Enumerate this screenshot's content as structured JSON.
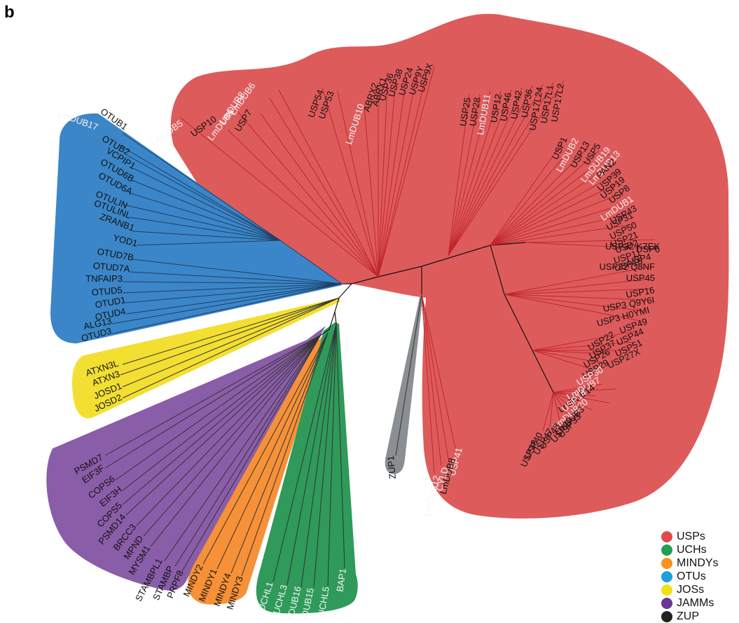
{
  "panel_label": "b",
  "colors": {
    "USPs": "#de5b5c",
    "UCHs": "#2f9a5a",
    "MINDYs": "#f69138",
    "OTUs": "#3b86c8",
    "JOSs": "#f3df32",
    "JAMMs": "#8a5da8",
    "ZUP": "#8b8f91"
  },
  "legend": [
    {
      "label": "USPs",
      "color": "#e04a4a"
    },
    {
      "label": "UCHs",
      "color": "#22a050"
    },
    {
      "label": "MINDYs",
      "color": "#f7931e"
    },
    {
      "label": "OTUs",
      "color": "#1ea0d8"
    },
    {
      "label": "JOSs",
      "color": "#f0e018"
    },
    {
      "label": "JAMMs",
      "color": "#6a3596"
    },
    {
      "label": "ZUP",
      "color": "#222222"
    }
  ],
  "clades": {
    "USPs": [
      "LmDUB5",
      "USP10",
      "LmDUB9",
      "USP7",
      "LmDUB8",
      "LmDUB6",
      "USP54",
      "USP53",
      "LmDUB10",
      "ABRX2",
      "ABRX1",
      "USP36",
      "USP38",
      "USP24",
      "USP9Y",
      "USP9X",
      "USP25",
      "USP28",
      "LmDUB11",
      "USP12",
      "USP46",
      "USP42",
      "USP36",
      "USP17L24",
      "USP17L1",
      "USP17L2",
      "USP1",
      "LmDUB2",
      "USP13",
      "USP5",
      "LmDUB19",
      "LmDUB13",
      "PAN2",
      "USP39",
      "USP19",
      "USP8",
      "LmDUB1",
      "USP43",
      "USP31",
      "USP50",
      "USP21",
      "USP2",
      "USP11",
      "USP15",
      "USP4",
      "USP6",
      "USP32 K7EK",
      "USP32 Q8NF",
      "USP45",
      "USP16",
      "USP3 Q9Y6I",
      "USP3 H0YMI",
      "USP49",
      "USP44",
      "USP51",
      "USP27X",
      "USP22",
      "USP37",
      "USP26",
      "USP29",
      "USP30",
      "LmDUB7",
      "LmDUB14",
      "USP14",
      "LmDUB20",
      "LmDUB3",
      "USP33",
      "USP20",
      "USP48",
      "USP47",
      "USP40",
      "USP18",
      "USP41",
      "LmDUB8",
      "CYLD",
      "LmDUB12",
      "LmDUB4"
    ],
    "OTUs": [
      "OTUB1",
      "LmDUB17",
      "OTUB2",
      "VCPIP1",
      "OTUD6B",
      "OTUD6A",
      "OTULIN",
      "OTULINL",
      "ZRANB1",
      "YOD1",
      "OTUD7B",
      "OTUD7A",
      "TNFAIP3",
      "OTUD5",
      "OTUD1",
      "OTUD4",
      "ALG13",
      "OTUD3"
    ],
    "JOSs": [
      "ATXN3L",
      "ATXN3",
      "JOSD1",
      "JOSD2"
    ],
    "JAMMs": [
      "PSMD7",
      "EIF3F",
      "COPS6",
      "EIF3H",
      "COPS5",
      "PSMD14",
      "BRCC3",
      "MPND",
      "MYSM1",
      "STAMBPL1",
      "STAMBP",
      "PRPF8"
    ],
    "MINDYs": [
      "MINDY2",
      "MINDY1",
      "MINDY4",
      "MINDY3"
    ],
    "UCHs": [
      "UCHL1",
      "UCHL3",
      "LmDUB16",
      "LmDUB15",
      "UCHL5",
      "BAP1"
    ],
    "ZUP": [
      "ZUP1"
    ]
  }
}
